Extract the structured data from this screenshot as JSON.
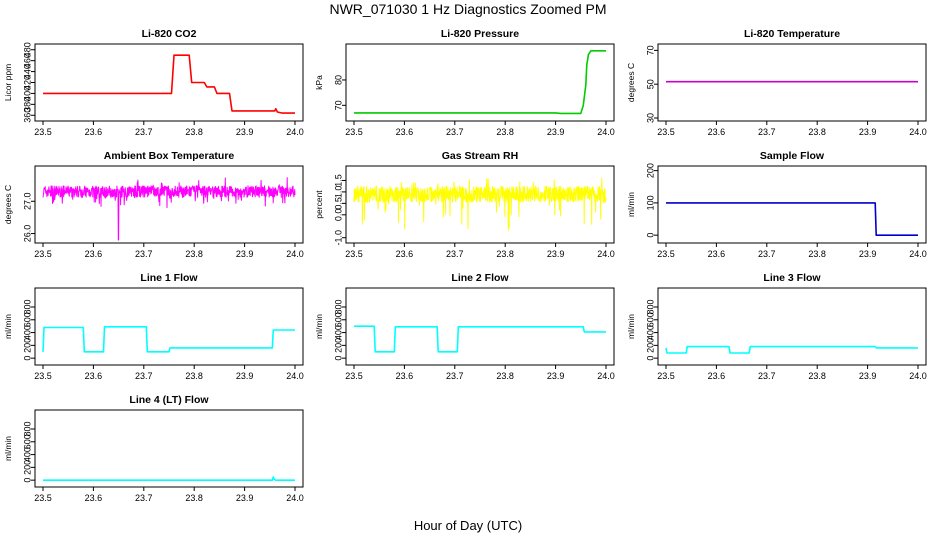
{
  "page": {
    "title": "NWR_071030  1 Hz Diagnostics Zoomed PM",
    "xlabel": "Hour of Day (UTC)"
  },
  "chart_data": [
    {
      "id": "co2",
      "type": "line",
      "title": "Li-820 CO2",
      "ylabel": "Licor ppm",
      "color": "#ff0000",
      "xlim": [
        23.5,
        24.0
      ],
      "xticks": [
        "23.5",
        "23.6",
        "23.7",
        "23.8",
        "23.9",
        "24.0"
      ],
      "ylim": [
        355,
        485
      ],
      "yticks": [
        360,
        380,
        400,
        420,
        440,
        460,
        480
      ],
      "series": [
        {
          "x": [
            23.5,
            23.75,
            23.755,
            23.76,
            23.79,
            23.795,
            23.82,
            23.825,
            23.84,
            23.845,
            23.87,
            23.875,
            23.96,
            23.962,
            23.965,
            23.975,
            24.0
          ],
          "y": [
            400,
            400,
            400,
            470,
            470,
            420,
            420,
            412,
            412,
            400,
            400,
            368,
            368,
            372,
            366,
            364,
            364
          ]
        }
      ]
    },
    {
      "id": "pressure",
      "type": "line",
      "title": "Li-820 Pressure",
      "ylabel": "kPa",
      "color": "#00cc00",
      "xlim": [
        23.5,
        24.0
      ],
      "xticks": [
        "23.5",
        "23.6",
        "23.7",
        "23.8",
        "23.9",
        "24.0"
      ],
      "ylim": [
        65,
        93
      ],
      "yticks": [
        70,
        80
      ],
      "series": [
        {
          "x": [
            23.5,
            23.9,
            23.91,
            23.95,
            23.955,
            23.96,
            23.962,
            23.965,
            23.97,
            24.0
          ],
          "y": [
            67,
            67,
            66.8,
            66.8,
            70,
            78,
            86,
            90,
            91.5,
            91.5
          ]
        }
      ]
    },
    {
      "id": "licor_temp",
      "type": "line",
      "title": "Li-820 Temperature",
      "ylabel": "degrees C",
      "color": "#cc00cc",
      "xlim": [
        23.5,
        24.0
      ],
      "xticks": [
        "23.5",
        "23.6",
        "23.7",
        "23.8",
        "23.9",
        "24.0"
      ],
      "ylim": [
        30,
        72
      ],
      "yticks": [
        30,
        50,
        70
      ],
      "series": [
        {
          "x": [
            23.5,
            24.0
          ],
          "y": [
            51.5,
            51.5
          ]
        }
      ]
    },
    {
      "id": "box_temp",
      "type": "line",
      "title": "Ambient Box Temperature",
      "ylabel": "degrees C",
      "color": "#ff00ff",
      "xlim": [
        23.5,
        24.0
      ],
      "xticks": [
        "23.5",
        "23.6",
        "23.7",
        "23.8",
        "23.9",
        "24.0"
      ],
      "ylim": [
        25.8,
        28.0
      ],
      "yticks": [
        26.0,
        27.0
      ],
      "noise": {
        "base": 27.3,
        "amp": 0.18,
        "dips": 0.35,
        "spike_at": 23.65,
        "spike_to": 25.8
      }
    },
    {
      "id": "gas_rh",
      "type": "line",
      "title": "Gas Stream RH",
      "ylabel": "percent",
      "color": "#ffff00",
      "xlim": [
        23.5,
        24.0
      ],
      "xticks": [
        "23.5",
        "23.6",
        "23.7",
        "23.8",
        "23.9",
        "24.0"
      ],
      "ylim": [
        -1.1,
        2.0
      ],
      "yticks": [
        -1.0,
        0.0,
        0.5,
        1.0,
        1.5
      ],
      "noise": {
        "base": 0.9,
        "amp": 0.35,
        "dips": 1.4
      }
    },
    {
      "id": "sample_flow",
      "type": "line",
      "title": "Sample Flow",
      "ylabel": "ml/min",
      "color": "#0000cc",
      "xlim": [
        23.5,
        24.0
      ],
      "xticks": [
        "23.5",
        "23.6",
        "23.7",
        "23.8",
        "23.9",
        "24.0"
      ],
      "ylim": [
        -15,
        205
      ],
      "yticks": [
        0,
        100,
        200
      ],
      "series": [
        {
          "x": [
            23.5,
            23.915,
            23.917,
            24.0
          ],
          "y": [
            100,
            100,
            0,
            0
          ]
        }
      ]
    },
    {
      "id": "line1",
      "type": "line",
      "title": "Line 1 Flow",
      "ylabel": "ml/min",
      "color": "#00ffff",
      "xlim": [
        23.5,
        24.0
      ],
      "xticks": [
        "23.5",
        "23.6",
        "23.7",
        "23.8",
        "23.9",
        "24.0"
      ],
      "ylim": [
        -60,
        1050
      ],
      "yticks": [
        0,
        200,
        400,
        600,
        800
      ],
      "series": [
        {
          "x": [
            23.5,
            23.502,
            23.58,
            23.582,
            23.62,
            23.622,
            23.705,
            23.707,
            23.75,
            23.752,
            23.955,
            23.957,
            24.0
          ],
          "y": [
            100,
            480,
            480,
            100,
            100,
            490,
            490,
            100,
            100,
            160,
            160,
            440,
            440
          ]
        }
      ]
    },
    {
      "id": "line2",
      "type": "line",
      "title": "Line 2 Flow",
      "ylabel": "ml/min",
      "color": "#00ffff",
      "xlim": [
        23.5,
        24.0
      ],
      "xticks": [
        "23.5",
        "23.6",
        "23.7",
        "23.8",
        "23.9",
        "24.0"
      ],
      "ylim": [
        -60,
        1050
      ],
      "yticks": [
        0,
        200,
        400,
        600,
        800
      ],
      "series": [
        {
          "x": [
            23.5,
            23.54,
            23.542,
            23.58,
            23.582,
            23.665,
            23.667,
            23.705,
            23.707,
            23.955,
            23.957,
            24.0
          ],
          "y": [
            500,
            500,
            100,
            100,
            490,
            490,
            100,
            100,
            490,
            490,
            410,
            410
          ]
        }
      ]
    },
    {
      "id": "line3",
      "type": "line",
      "title": "Line 3 Flow",
      "ylabel": "ml/min",
      "color": "#00ffff",
      "xlim": [
        23.5,
        24.0
      ],
      "xticks": [
        "23.5",
        "23.6",
        "23.7",
        "23.8",
        "23.9",
        "24.0"
      ],
      "ylim": [
        -60,
        1050
      ],
      "yticks": [
        0,
        200,
        400,
        600,
        800
      ],
      "series": [
        {
          "x": [
            23.5,
            23.502,
            23.54,
            23.542,
            23.625,
            23.627,
            23.665,
            23.667,
            23.915,
            23.917,
            24.0
          ],
          "y": [
            160,
            80,
            80,
            180,
            180,
            80,
            80,
            180,
            180,
            160,
            160
          ]
        }
      ]
    },
    {
      "id": "line4",
      "type": "line",
      "title": "Line 4 (LT) Flow",
      "ylabel": "ml/min",
      "color": "#00ffff",
      "xlim": [
        23.5,
        24.0
      ],
      "xticks": [
        "23.5",
        "23.6",
        "23.7",
        "23.8",
        "23.9",
        "24.0"
      ],
      "ylim": [
        -60,
        1050
      ],
      "yticks": [
        0,
        200,
        400,
        600,
        800
      ],
      "series": [
        {
          "x": [
            23.5,
            23.955,
            23.957,
            23.959,
            23.962,
            24.0
          ],
          "y": [
            0,
            0,
            50,
            10,
            0,
            0
          ]
        }
      ]
    }
  ]
}
